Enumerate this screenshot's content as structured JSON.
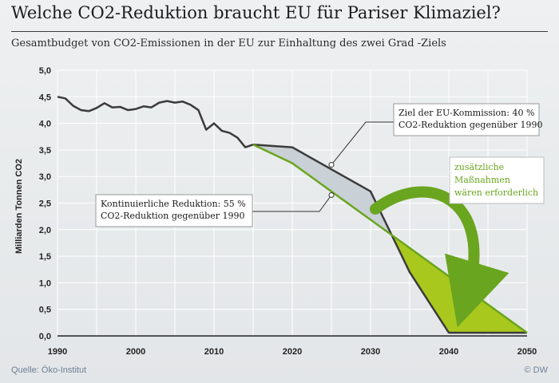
{
  "title": "Welche CO2-Reduktion braucht EU für Pariser Klimaziel?",
  "subtitle": "Gesamtbudget von CO2-Emissionen in der EU zur Einhaltung des zwei Grad -Ziels",
  "source": "Quelle:  Öko-Institut",
  "brand": "© DW",
  "colors": {
    "historic_line": "#3b3b3b",
    "commission_line": "#3b3b3b",
    "linear_line": "#6aa51f",
    "grey_area": "#c9d0d6",
    "green_area": "#a9c81d",
    "arrow": "#6aa51f",
    "grid": "#ffffff"
  },
  "chart_data": {
    "type": "line",
    "ylabel": "Milliarden Tonnen CO2",
    "xlabel": "",
    "xlim": [
      1990,
      2050
    ],
    "ylim": [
      0,
      5
    ],
    "x_ticks": [
      "1990",
      "2000",
      "2010",
      "2020",
      "2030",
      "2040",
      "2050"
    ],
    "y_ticks": [
      "0,0",
      "0,5",
      "1,0",
      "1,5",
      "2,0",
      "2,5",
      "3,0",
      "3,5",
      "4,0",
      "4,5",
      "5,0"
    ],
    "grid": true,
    "series": [
      {
        "points": [
          [
            1990,
            4.5
          ],
          [
            1991,
            4.47
          ],
          [
            1992,
            4.33
          ],
          [
            1993,
            4.25
          ],
          [
            1994,
            4.23
          ],
          [
            1995,
            4.29
          ],
          [
            1996,
            4.38
          ],
          [
            1997,
            4.3
          ],
          [
            1998,
            4.31
          ],
          [
            1999,
            4.25
          ],
          [
            2000,
            4.27
          ],
          [
            2001,
            4.32
          ],
          [
            2002,
            4.3
          ],
          [
            2003,
            4.39
          ],
          [
            2004,
            4.42
          ],
          [
            2005,
            4.39
          ],
          [
            2006,
            4.41
          ],
          [
            2007,
            4.35
          ],
          [
            2008,
            4.25
          ],
          [
            2009,
            3.88
          ],
          [
            2010,
            4.0
          ],
          [
            2011,
            3.86
          ],
          [
            2012,
            3.82
          ],
          [
            2013,
            3.73
          ],
          [
            2014,
            3.55
          ],
          [
            2015,
            3.6
          ]
        ]
      },
      {
        "points": [
          [
            2015,
            3.6
          ],
          [
            2020,
            3.55
          ],
          [
            2030,
            2.72
          ],
          [
            2035,
            1.2
          ],
          [
            2040,
            0.06
          ],
          [
            2050,
            0.06
          ]
        ]
      },
      {
        "points": [
          [
            2015,
            3.6
          ],
          [
            2020,
            3.25
          ],
          [
            2050,
            0.06
          ]
        ]
      }
    ],
    "annotations": [
      {
        "id": "commission",
        "lines": [
          "Ziel der EU-Kommission: 40 %",
          "CO2-Reduktion gegenüber 1990"
        ],
        "target": [
          2025,
          3.22
        ]
      },
      {
        "id": "linear",
        "lines": [
          "Kontinuierliche Reduktion: 55 %",
          "CO2-Reduktion gegenüber 1990"
        ],
        "target": [
          2025,
          2.65
        ]
      },
      {
        "id": "extra",
        "lines": [
          "zusätzliche",
          "Maßnahmen",
          "wären erforderlich"
        ]
      }
    ]
  }
}
